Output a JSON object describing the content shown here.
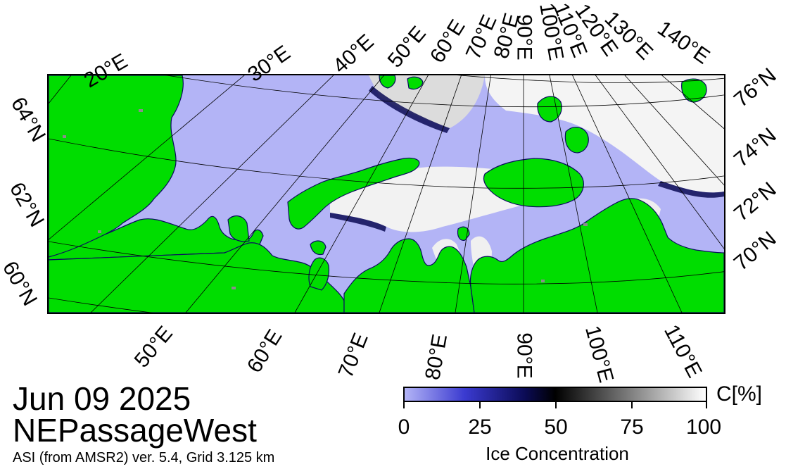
{
  "map": {
    "colors": {
      "land": "#00dd00",
      "open_water": "#b3b4f6",
      "ice_low": "#0a0a80",
      "ice_mid": "#000000",
      "ice_high": "#ffffff",
      "missing_data": "#8c8c8c",
      "graticule": "#000000"
    },
    "graticule_visible": true
  },
  "labels": {
    "top_lon": [
      "20°E",
      "30°E",
      "40°E",
      "50°E",
      "60°E",
      "70°E",
      "80°E",
      "90°E",
      "100°E",
      "110°E",
      "120°E",
      "130°E",
      "140°E"
    ],
    "bottom_lon": [
      "50°E",
      "60°E",
      "70°E",
      "80°E",
      "90°E",
      "100°E",
      "110°E"
    ],
    "left_lat": [
      "64°N",
      "62°N",
      "60°N"
    ],
    "right_lat": [
      "76°N",
      "74°N",
      "72°N",
      "70°N"
    ]
  },
  "titles": {
    "date": "Jun 09 2025",
    "region": "NEPassageWest",
    "source": "ASI (from AMSR2) ver. 5.4,  Grid 3.125 km"
  },
  "colorbar": {
    "unit": "C[%]",
    "title": "Ice Concentration",
    "ticks": [
      "0",
      "25",
      "50",
      "75",
      "100"
    ],
    "range": [
      0,
      100
    ],
    "stops": [
      {
        "value": 0,
        "color": "#b3b4f6"
      },
      {
        "value": 20,
        "color": "#3a3ad0"
      },
      {
        "value": 40,
        "color": "#0b0b55"
      },
      {
        "value": 50,
        "color": "#000000"
      },
      {
        "value": 75,
        "color": "#7f7f7f"
      },
      {
        "value": 100,
        "color": "#ffffff"
      }
    ]
  }
}
